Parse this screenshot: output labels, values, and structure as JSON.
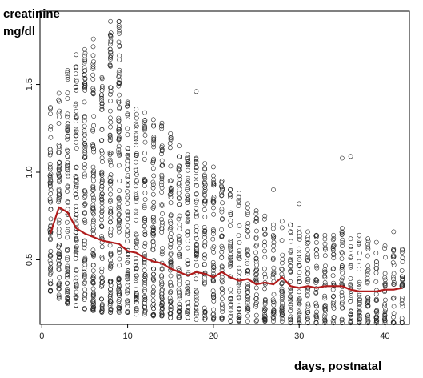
{
  "chart_data": {
    "type": "scatter",
    "ylabel_line1": "creatinine",
    "ylabel_line2": "mg/dl",
    "xlabel": "days, postnatal",
    "xlim": [
      0,
      43
    ],
    "ylim": [
      0.1,
      1.9
    ],
    "xticks": [
      0,
      10,
      20,
      30,
      40
    ],
    "yticks": [
      0.5,
      1.0,
      1.5
    ],
    "ytick_labels": [
      "0.5",
      "1.0",
      "1.5"
    ],
    "grid": false,
    "point_marker": "open-circle",
    "days": [
      1,
      2,
      3,
      4,
      5,
      6,
      7,
      8,
      9,
      10,
      11,
      12,
      13,
      14,
      15,
      16,
      17,
      18,
      19,
      20,
      21,
      22,
      23,
      24,
      25,
      26,
      27,
      28,
      29,
      30,
      31,
      32,
      33,
      34,
      35,
      36,
      37,
      38,
      39,
      40,
      41,
      42
    ],
    "range_low": [
      0.32,
      0.28,
      0.25,
      0.24,
      0.22,
      0.21,
      0.2,
      0.2,
      0.2,
      0.2,
      0.19,
      0.19,
      0.18,
      0.18,
      0.17,
      0.17,
      0.17,
      0.16,
      0.16,
      0.16,
      0.16,
      0.15,
      0.15,
      0.15,
      0.15,
      0.15,
      0.15,
      0.15,
      0.14,
      0.14,
      0.14,
      0.14,
      0.14,
      0.14,
      0.14,
      0.14,
      0.14,
      0.14,
      0.14,
      0.14,
      0.14,
      0.14
    ],
    "range_high": [
      1.37,
      1.45,
      1.58,
      1.67,
      1.7,
      1.76,
      1.54,
      1.86,
      1.86,
      1.4,
      1.36,
      1.34,
      1.3,
      1.28,
      1.22,
      1.15,
      1.1,
      1.08,
      1.05,
      0.98,
      0.95,
      0.9,
      0.88,
      0.82,
      0.78,
      0.75,
      0.7,
      0.72,
      0.7,
      0.68,
      0.66,
      0.64,
      0.64,
      0.64,
      0.66,
      0.62,
      0.64,
      0.62,
      0.6,
      0.58,
      0.56,
      0.56
    ],
    "outliers": [
      {
        "x": 18,
        "y": 1.46
      },
      {
        "x": 20,
        "y": 1.03
      },
      {
        "x": 27,
        "y": 0.9
      },
      {
        "x": 30,
        "y": 0.82
      },
      {
        "x": 35,
        "y": 1.08
      },
      {
        "x": 36,
        "y": 1.09
      },
      {
        "x": 35,
        "y": 0.68
      },
      {
        "x": 41,
        "y": 0.66
      }
    ],
    "series": [
      {
        "color": "#b01c1c",
        "x": [
          1,
          2,
          3,
          4,
          5,
          6,
          7,
          8,
          9,
          10,
          11,
          12,
          13,
          14,
          15,
          16,
          17,
          18,
          19,
          20,
          21,
          22,
          23,
          24,
          25,
          26,
          27,
          28,
          29,
          30,
          31,
          32,
          33,
          34,
          35,
          36,
          37,
          38,
          39,
          40,
          41,
          42
        ],
        "y": [
          0.65,
          0.8,
          0.77,
          0.68,
          0.65,
          0.63,
          0.61,
          0.6,
          0.59,
          0.55,
          0.54,
          0.51,
          0.49,
          0.48,
          0.45,
          0.43,
          0.41,
          0.43,
          0.42,
          0.4,
          0.43,
          0.4,
          0.38,
          0.39,
          0.36,
          0.37,
          0.36,
          0.4,
          0.35,
          0.34,
          0.35,
          0.34,
          0.35,
          0.35,
          0.35,
          0.33,
          0.32,
          0.32,
          0.32,
          0.33,
          0.33,
          0.34
        ]
      }
    ]
  }
}
